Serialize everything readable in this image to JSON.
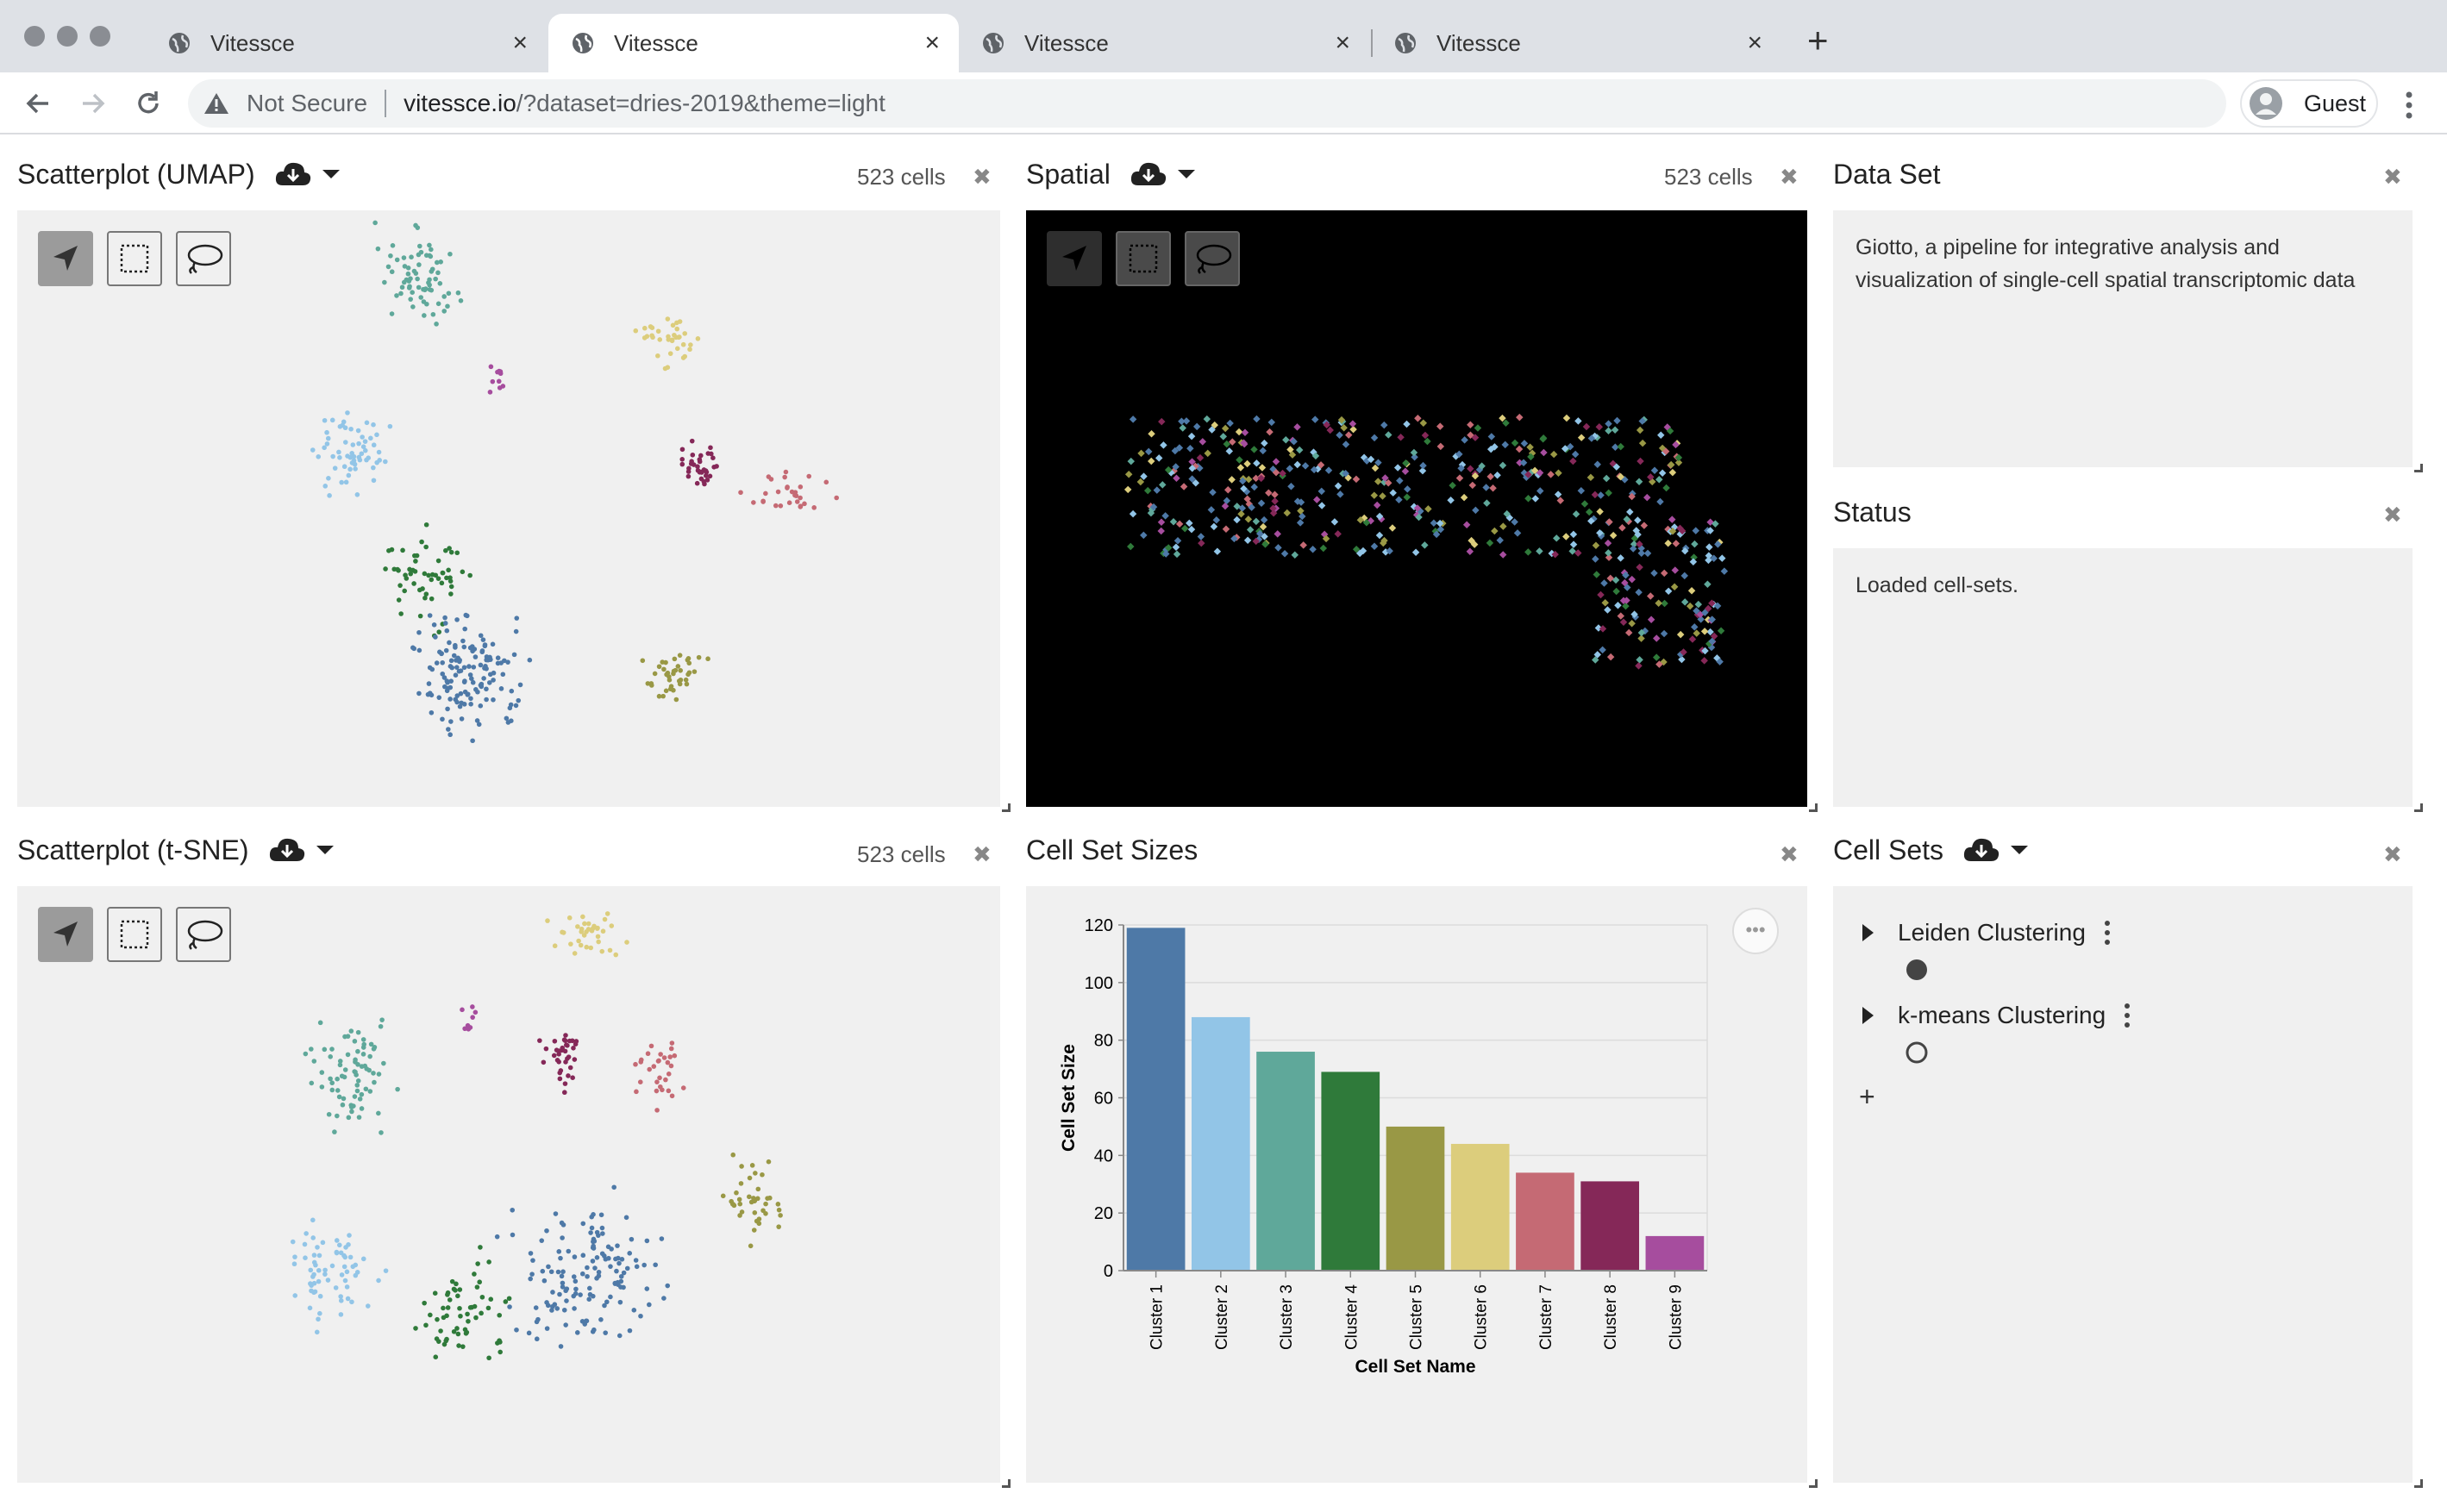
{
  "browser": {
    "tabs": [
      {
        "title": "Vitessce",
        "active": false
      },
      {
        "title": "Vitessce",
        "active": true
      },
      {
        "title": "Vitessce",
        "active": false
      },
      {
        "title": "Vitessce",
        "active": false
      }
    ],
    "security_label": "Not Secure",
    "url_host": "vitessce.io",
    "url_rest": "/?dataset=dries-2019&theme=light",
    "profile_label": "Guest"
  },
  "panels": {
    "umap": {
      "title": "Scatterplot (UMAP)",
      "count": "523 cells"
    },
    "spatial": {
      "title": "Spatial",
      "count": "523 cells"
    },
    "dataset": {
      "title": "Data Set",
      "description": "Giotto, a pipeline for integrative analysis and visualization of single-cell spatial transcriptomic data"
    },
    "status": {
      "title": "Status",
      "message": "Loaded cell-sets."
    },
    "tsne": {
      "title": "Scatterplot (t-SNE)",
      "count": "523 cells"
    },
    "sizes": {
      "title": "Cell Set Sizes"
    },
    "cellsets": {
      "title": "Cell Sets",
      "items": [
        {
          "label": "Leiden Clustering"
        },
        {
          "label": "k-means Clustering"
        }
      ],
      "add_label": "+"
    }
  },
  "colors": {
    "cluster1": "#4e79a7",
    "cluster2": "#92c5e7",
    "cluster3": "#5fa89a",
    "cluster4": "#2f7a3a",
    "cluster5": "#999845",
    "cluster6": "#dccd7c",
    "cluster7": "#c56a74",
    "cluster8": "#852858",
    "cluster9": "#a64d9e"
  },
  "chart_data": {
    "type": "bar",
    "categories": [
      "Cluster 1",
      "Cluster 2",
      "Cluster 3",
      "Cluster 4",
      "Cluster 5",
      "Cluster 6",
      "Cluster 7",
      "Cluster 8",
      "Cluster 9"
    ],
    "values": [
      119,
      88,
      76,
      69,
      50,
      44,
      34,
      31,
      12
    ],
    "colors": [
      "#4e79a7",
      "#92c5e7",
      "#5fa89a",
      "#2f7a3a",
      "#999845",
      "#dccd7c",
      "#c56a74",
      "#852858",
      "#a64d9e"
    ],
    "xlabel": "Cell Set Name",
    "ylabel": "Cell Set Size",
    "ylim": [
      0,
      120
    ],
    "yticks": [
      0,
      20,
      40,
      60,
      80,
      100,
      120
    ],
    "grid": true
  }
}
